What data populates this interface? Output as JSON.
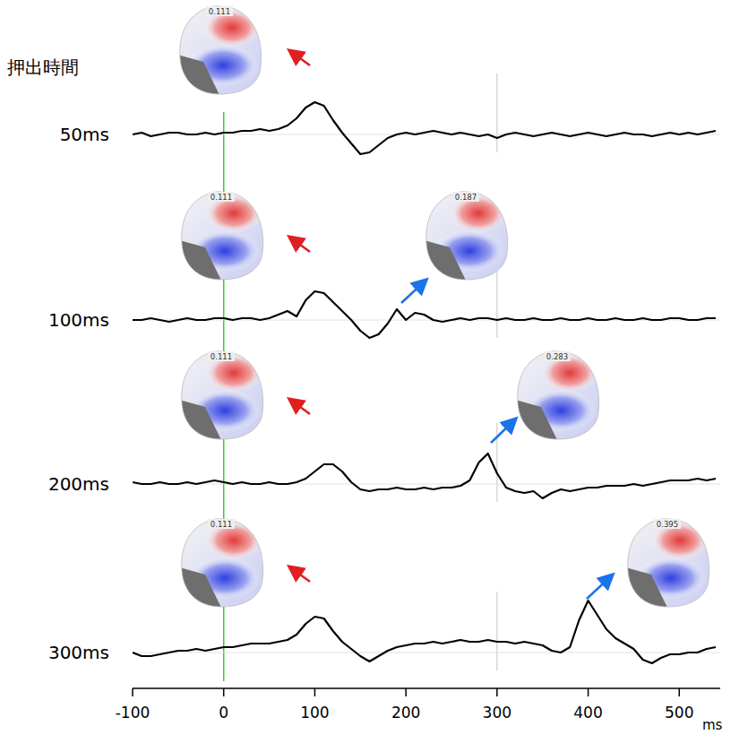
{
  "chart_data": {
    "type": "line",
    "ylabel": "押出時間",
    "xlabel": "ms",
    "x": [
      -100,
      -90,
      -80,
      -70,
      -60,
      -50,
      -40,
      -30,
      -20,
      -10,
      0,
      10,
      20,
      30,
      40,
      50,
      60,
      70,
      80,
      90,
      100,
      110,
      120,
      130,
      140,
      150,
      160,
      170,
      180,
      190,
      200,
      210,
      220,
      230,
      240,
      250,
      260,
      270,
      280,
      290,
      300,
      310,
      320,
      330,
      340,
      350,
      360,
      370,
      380,
      390,
      400,
      410,
      420,
      430,
      440,
      450,
      460,
      470,
      480,
      490,
      500,
      510,
      520,
      530,
      540
    ],
    "xlim": [
      -100,
      545
    ],
    "xticks": [
      -100,
      0,
      100,
      200,
      300,
      400,
      500
    ],
    "ylim": [
      -1.5,
      3
    ],
    "tick_labels": "x",
    "grid": false,
    "vlines": [
      {
        "x": 0,
        "color": "#33cc33"
      },
      {
        "x": 300,
        "color": "#cccccc"
      }
    ],
    "series": [
      {
        "name": "50ms",
        "color": "#000000",
        "maps": [
          "0.111"
        ],
        "values": [
          0,
          0.1,
          -0.1,
          0,
          0.1,
          0.1,
          0,
          0,
          0.1,
          0,
          0.1,
          0.1,
          0.2,
          0.2,
          0.3,
          0.2,
          0.3,
          0.5,
          0.9,
          1.5,
          1.8,
          1.6,
          0.8,
          0.1,
          -0.5,
          -1.1,
          -1.0,
          -0.6,
          -0.2,
          0,
          0.1,
          0,
          0.1,
          0.2,
          0.1,
          0,
          0.1,
          0,
          -0.1,
          0,
          -0.2,
          0,
          0.1,
          0,
          -0.1,
          0,
          0.1,
          0,
          -0.1,
          0,
          0.1,
          0,
          -0.1,
          0,
          0.1,
          0,
          0,
          -0.1,
          0,
          0.1,
          0,
          0.1,
          0,
          0.1,
          0.2
        ]
      },
      {
        "name": "100ms",
        "color": "#000000",
        "maps": [
          "0.111",
          "0.187"
        ],
        "values": [
          0,
          0,
          0.1,
          0,
          -0.1,
          0,
          0.1,
          0,
          0,
          0.1,
          0.1,
          0,
          0.1,
          0.1,
          0,
          0.1,
          0.3,
          0.5,
          0.2,
          1.1,
          1.6,
          1.5,
          1.0,
          0.5,
          0,
          -0.6,
          -1.0,
          -0.8,
          -0.2,
          0.6,
          0,
          0.4,
          0.3,
          0,
          -0.1,
          0,
          0.1,
          0,
          0.1,
          0.1,
          0,
          0.1,
          0,
          0,
          0.1,
          0,
          0,
          0.1,
          0,
          0,
          0.1,
          0,
          0,
          0.1,
          0,
          0,
          0.1,
          0,
          0,
          0.1,
          0.1,
          0,
          0,
          0.1,
          0.1
        ]
      },
      {
        "name": "200ms",
        "color": "#000000",
        "maps": [
          "0.111",
          "0.283"
        ],
        "values": [
          0.1,
          0,
          0,
          0.1,
          0,
          0,
          0.1,
          0,
          0.1,
          0.2,
          0.1,
          0,
          0.1,
          0,
          0,
          0.1,
          0,
          0,
          0.1,
          0.3,
          0.7,
          1.1,
          1.1,
          0.7,
          0.1,
          -0.3,
          -0.4,
          -0.3,
          -0.3,
          -0.2,
          -0.3,
          -0.3,
          -0.2,
          -0.3,
          -0.2,
          -0.2,
          -0.1,
          0.2,
          1.2,
          1.7,
          0.6,
          -0.2,
          -0.4,
          -0.5,
          -0.4,
          -0.8,
          -0.5,
          -0.3,
          -0.4,
          -0.3,
          -0.2,
          -0.2,
          -0.1,
          -0.1,
          -0.1,
          0,
          -0.1,
          0,
          0.1,
          0.2,
          0.2,
          0.2,
          0.3,
          0.2,
          0.3
        ]
      },
      {
        "name": "300ms",
        "color": "#000000",
        "maps": [
          "0.111",
          "0.395"
        ],
        "values": [
          0,
          -0.2,
          -0.2,
          -0.1,
          0,
          0.1,
          0.1,
          0.2,
          0.1,
          0.2,
          0.3,
          0.3,
          0.4,
          0.5,
          0.5,
          0.5,
          0.6,
          0.7,
          1.0,
          1.6,
          2.0,
          1.9,
          1.2,
          0.6,
          0.2,
          -0.2,
          -0.5,
          -0.2,
          0.1,
          0.3,
          0.4,
          0.5,
          0.5,
          0.6,
          0.5,
          0.6,
          0.7,
          0.6,
          0.6,
          0.7,
          0.6,
          0.6,
          0.5,
          0.6,
          0.5,
          0.4,
          0.1,
          0,
          0.3,
          1.8,
          2.9,
          2.1,
          1.3,
          0.8,
          0.5,
          0.2,
          -0.4,
          -0.6,
          -0.3,
          -0.1,
          -0.1,
          0,
          0,
          0.2,
          0.3
        ]
      }
    ]
  }
}
